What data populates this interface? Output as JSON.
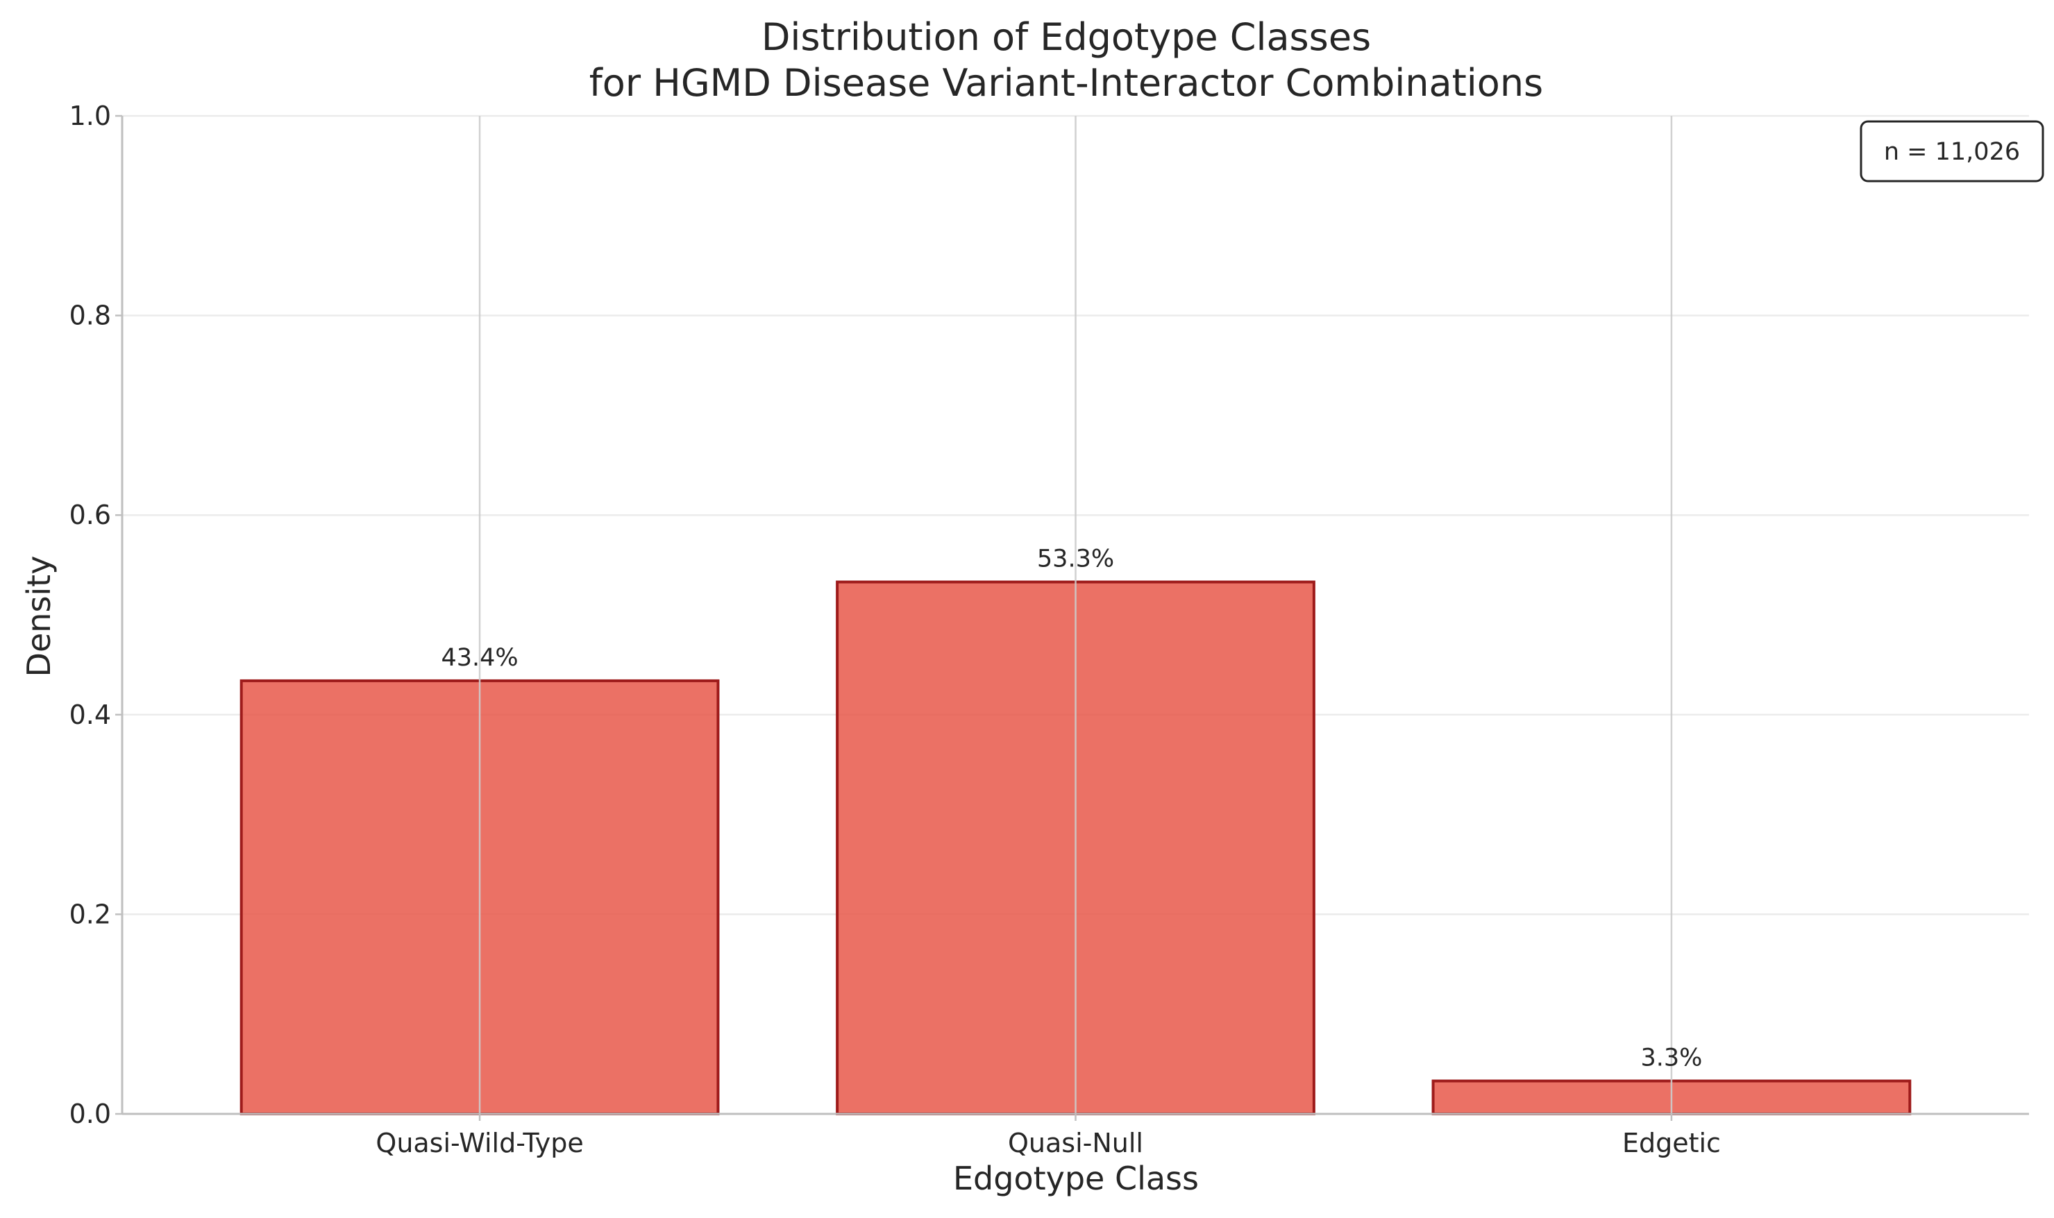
{
  "chart_data": {
    "type": "bar",
    "title": [
      "Distribution of Edgotype Classes",
      "for HGMD Disease Variant-Interactor Combinations"
    ],
    "xlabel": "Edgotype Class",
    "ylabel": "Density",
    "categories": [
      "Quasi-Wild-Type",
      "Quasi-Null",
      "Edgetic"
    ],
    "values": [
      0.434,
      0.533,
      0.033
    ],
    "data_labels": [
      "43.4%",
      "53.3%",
      "3.3%"
    ],
    "ylim": [
      0,
      1.0
    ],
    "yticks": [
      0.0,
      0.2,
      0.4,
      0.6,
      0.8,
      1.0
    ],
    "ytick_labels": [
      "0.0",
      "0.2",
      "0.4",
      "0.6",
      "0.8",
      "1.0"
    ],
    "grid": true,
    "annotation": "n = 11,026",
    "annotation_placement": "top-right",
    "colors": {
      "bar_fill": "#E8584A",
      "bar_edge": "#9E1B1B",
      "grid": "#EBEBEB",
      "vgrid": "#CCCCCC",
      "axis": "#BFBFBF",
      "text": "#262626"
    }
  }
}
